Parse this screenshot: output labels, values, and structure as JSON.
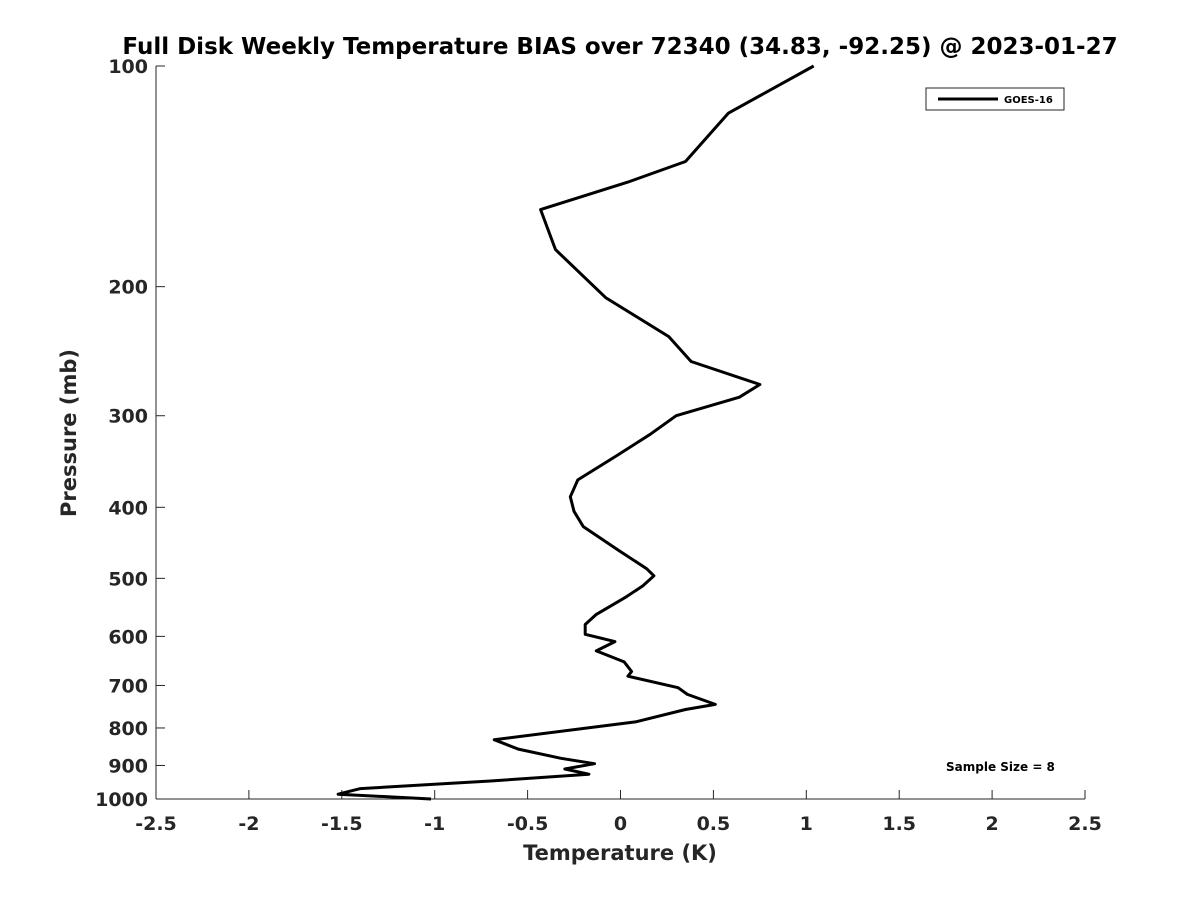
{
  "chart_data": {
    "type": "line",
    "title": "Full Disk Weekly Temperature BIAS over 72340 (34.83, -92.25) @ 2023-01-27",
    "xlabel": "Temperature (K)",
    "ylabel": "Pressure (mb)",
    "xlim": [
      -2.5,
      2.5
    ],
    "ylim": [
      100,
      1000
    ],
    "y_scale": "log",
    "y_reversed": true,
    "x_ticks": [
      "-2.5",
      "-2",
      "-1.5",
      "-1",
      "-0.5",
      "0",
      "0.5",
      "1",
      "1.5",
      "2",
      "2.5"
    ],
    "x_tick_values": [
      -2.5,
      -2,
      -1.5,
      -1,
      -0.5,
      0,
      0.5,
      1,
      1.5,
      2,
      2.5
    ],
    "y_ticks": [
      "100",
      "200",
      "300",
      "400",
      "500",
      "600",
      "700",
      "800",
      "900",
      "1000"
    ],
    "y_tick_values": [
      100,
      200,
      300,
      400,
      500,
      600,
      700,
      800,
      900,
      1000
    ],
    "grid": false,
    "legend_position": "top-right",
    "series": [
      {
        "name": "GOES-16",
        "color": "#000000",
        "points": [
          [
            1.04,
            100
          ],
          [
            0.58,
            116
          ],
          [
            0.35,
            135
          ],
          [
            0.04,
            144
          ],
          [
            -0.43,
            157
          ],
          [
            -0.35,
            178
          ],
          [
            -0.08,
            207
          ],
          [
            0.26,
            234
          ],
          [
            0.38,
            253
          ],
          [
            0.75,
            272
          ],
          [
            0.64,
            283
          ],
          [
            0.3,
            300
          ],
          [
            0.16,
            318
          ],
          [
            -0.02,
            340
          ],
          [
            -0.23,
            367
          ],
          [
            -0.27,
            387
          ],
          [
            -0.25,
            405
          ],
          [
            -0.2,
            425
          ],
          [
            -0.01,
            458
          ],
          [
            0.14,
            485
          ],
          [
            0.18,
            496
          ],
          [
            0.12,
            512
          ],
          [
            0.03,
            530
          ],
          [
            -0.13,
            560
          ],
          [
            -0.19,
            578
          ],
          [
            -0.19,
            596
          ],
          [
            -0.03,
            610
          ],
          [
            -0.13,
            628
          ],
          [
            0.02,
            650
          ],
          [
            0.06,
            670
          ],
          [
            0.04,
            680
          ],
          [
            0.31,
            705
          ],
          [
            0.36,
            720
          ],
          [
            0.51,
            743
          ],
          [
            0.35,
            755
          ],
          [
            0.08,
            785
          ],
          [
            -0.68,
            830
          ],
          [
            -0.55,
            855
          ],
          [
            -0.32,
            880
          ],
          [
            -0.14,
            895
          ],
          [
            -0.3,
            910
          ],
          [
            -0.17,
            925
          ],
          [
            -0.7,
            945
          ],
          [
            -1.4,
            968
          ],
          [
            -1.52,
            985
          ],
          [
            -1.02,
            1000
          ]
        ]
      }
    ],
    "annotation": "Sample Size = 8"
  }
}
